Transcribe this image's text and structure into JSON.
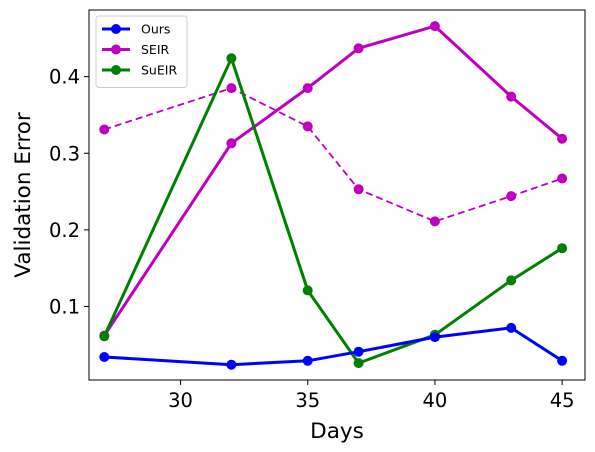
{
  "chart_data": {
    "type": "line",
    "title": "",
    "xlabel": "Days",
    "ylabel": "Validation Error",
    "xlim": [
      26.4,
      45.9
    ],
    "ylim": [
      0.004,
      0.487
    ],
    "xticks": [
      30,
      35,
      40,
      45
    ],
    "yticks": [
      0.1,
      0.2,
      0.3,
      0.4
    ],
    "ytick_labels": [
      "0.1",
      "0.2",
      "0.3",
      "0.4"
    ],
    "xtick_labels": [
      "30",
      "35",
      "40",
      "45"
    ],
    "grid": false,
    "legend": {
      "location": "top-left"
    },
    "series": [
      {
        "name": "Ours",
        "color": "#0000ff",
        "linestyle": "solid",
        "x": [
          27,
          32,
          35,
          37,
          40,
          43,
          45
        ],
        "y": [
          0.034,
          0.024,
          0.029,
          0.041,
          0.06,
          0.072,
          0.029
        ],
        "in_legend": true
      },
      {
        "name": "SEIR",
        "color": "#bf00bf",
        "linestyle": "solid",
        "x": [
          27,
          32,
          35,
          37,
          40,
          43,
          45
        ],
        "y": [
          0.062,
          0.313,
          0.385,
          0.437,
          0.466,
          0.374,
          0.319
        ],
        "in_legend": true
      },
      {
        "name": "SuEIR",
        "color": "#008000",
        "linestyle": "solid",
        "x": [
          27,
          32,
          35,
          37,
          40,
          43,
          45
        ],
        "y": [
          0.061,
          0.424,
          0.121,
          0.026,
          0.063,
          0.134,
          0.176
        ],
        "in_legend": true
      },
      {
        "name": "",
        "color": "#bf00bf",
        "linestyle": "dashed",
        "x": [
          27,
          32,
          35,
          37,
          40,
          43,
          45
        ],
        "y": [
          0.331,
          0.385,
          0.335,
          0.253,
          0.211,
          0.244,
          0.267
        ],
        "in_legend": false
      }
    ]
  }
}
